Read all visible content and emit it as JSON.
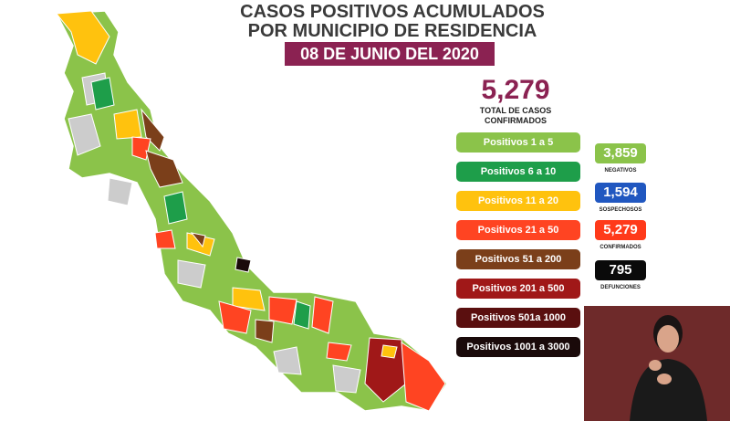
{
  "header": {
    "title_lines": [
      "CASOS POSITIVOS ACUMULADOS",
      "POR MUNICIPIO DE RESIDENCIA"
    ],
    "date": "08 DE JUNIO DEL 2020"
  },
  "summary": {
    "total": "5,279",
    "caption_lines": [
      "TOTAL DE CASOS",
      "CONFIRMADOS"
    ]
  },
  "legend": [
    {
      "label": "Positivos 1 a 5",
      "color": "#8bc34a"
    },
    {
      "label": "Positivos 6 a 10",
      "color": "#1e9e4a"
    },
    {
      "label": "Positivos 11 a 20",
      "color": "#ffc20e"
    },
    {
      "label": "Positivos 21 a 50",
      "color": "#ff4422"
    },
    {
      "label": "Positivos 51 a 200",
      "color": "#7b3f1a"
    },
    {
      "label": "Positivos 201 a 500",
      "color": "#a01818"
    },
    {
      "label": "Positivos 501a 1000",
      "color": "#5a0f0f"
    },
    {
      "label": "Positivos 1001 a 3000",
      "color": "#1a0a0a"
    }
  ],
  "stats": [
    {
      "value": "3,859",
      "label": "NEGATIVOS",
      "color": "#8bc34a"
    },
    {
      "value": "1,594",
      "label": "SOSPECHOSOS",
      "color": "#2057c0"
    },
    {
      "value": "5,279",
      "label": "CONFIRMADOS",
      "color": "#ff3a1a"
    },
    {
      "value": "795",
      "label": "DEFUNCIONES",
      "color": "#0a0a0a"
    }
  ]
}
